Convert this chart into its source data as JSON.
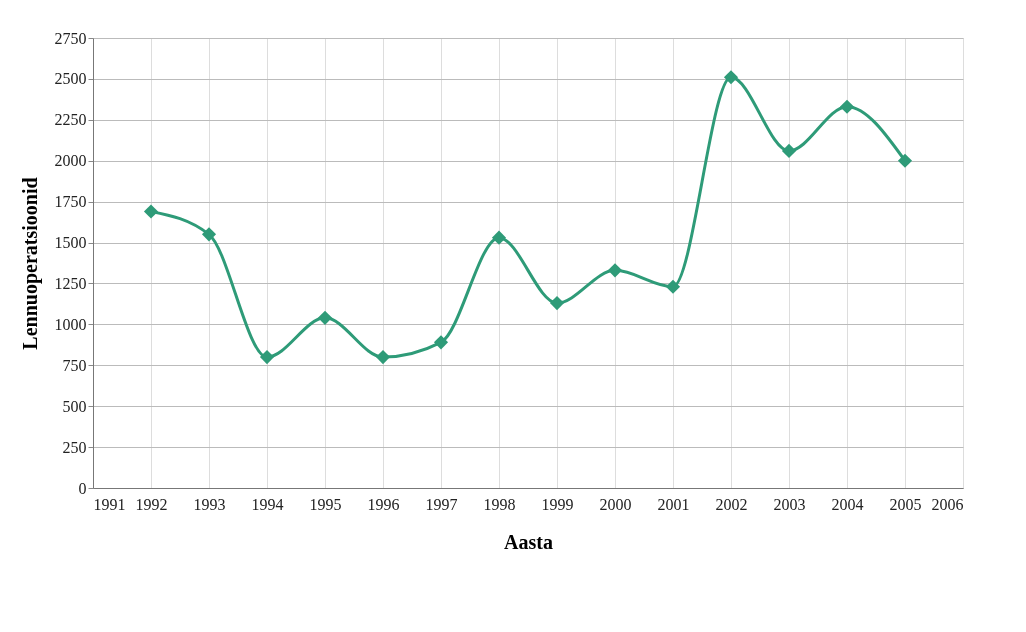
{
  "chart_data": {
    "type": "line",
    "xlabel": "Aasta",
    "ylabel": "Lennuoperatsioonid",
    "x": [
      1992,
      1993,
      1994,
      1995,
      1996,
      1997,
      1998,
      1999,
      2000,
      2001,
      2002,
      2003,
      2004,
      2005
    ],
    "series": [
      {
        "color": "#2e9b78",
        "values": [
          1690,
          1550,
          800,
          1040,
          800,
          890,
          1530,
          1130,
          1330,
          1230,
          2510,
          2060,
          2330,
          2000
        ]
      }
    ],
    "xlim": [
      1991,
      2006
    ],
    "xticks": [
      1991,
      1992,
      1993,
      1994,
      1995,
      1996,
      1997,
      1998,
      1999,
      2000,
      2001,
      2002,
      2003,
      2004,
      2005,
      2006
    ],
    "ylim": [
      0,
      2750
    ],
    "yticks": [
      0,
      250,
      500,
      750,
      1000,
      1250,
      1500,
      1750,
      2000,
      2250,
      2500,
      2750
    ],
    "grid": true,
    "marker": "diamond",
    "line_style": "solid"
  }
}
